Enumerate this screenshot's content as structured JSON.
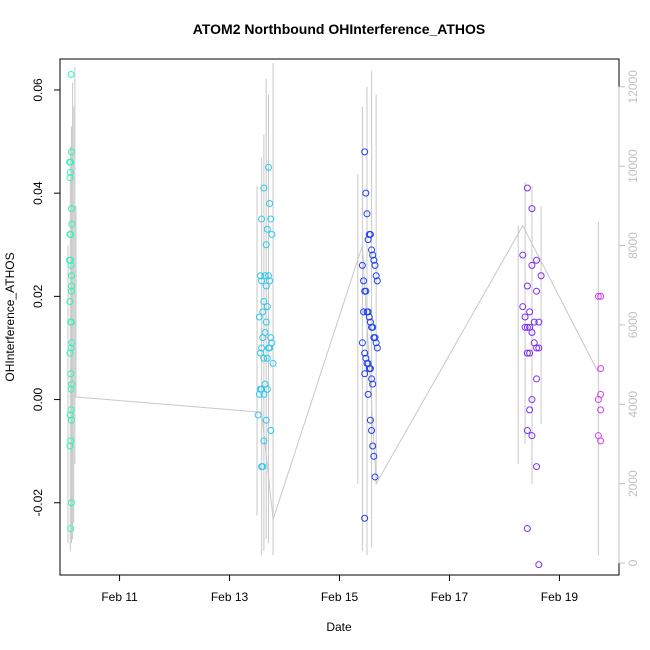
{
  "chart_data": {
    "type": "scatter",
    "title": "ATOM2 Northbound OHInterference_ATHOS",
    "xlabel": "Date",
    "ylabel": "OHInterference_ATHOS",
    "x_ticks": [
      "Feb 11",
      "Feb 13",
      "Feb 15",
      "Feb 17",
      "Feb 19"
    ],
    "y_ticks": [
      "-0.02",
      "0.00",
      "0.02",
      "0.04",
      "0.06"
    ],
    "y2_ticks": [
      "0",
      "2000",
      "4000",
      "6000",
      "8000",
      "10000",
      "12000"
    ],
    "xlim": [
      "2016-02-09 22:00",
      "2016-02-20 02:00"
    ],
    "ylim": [
      -0.034,
      0.066
    ],
    "y2lim": [
      -300,
      12700
    ],
    "grid": false,
    "colors": {
      "secondary_line": "#c8c8c8",
      "secondary_axis": "#c0c0c0",
      "point_palette": [
        "#2ff5b9",
        "#2fc8f0",
        "#1f3ff0",
        "#7a2ff0",
        "#d63ff0"
      ]
    },
    "series": [
      {
        "group": 1,
        "color": "#2ff5b9",
        "points": [
          [
            "2016-02-10 02:10",
            0.046
          ],
          [
            "2016-02-10 02:20",
            0.043
          ],
          [
            "2016-02-10 02:30",
            0.044
          ],
          [
            "2016-02-10 02:40",
            0.046
          ],
          [
            "2016-02-10 02:20",
            0.032
          ],
          [
            "2016-02-10 02:30",
            0.027
          ],
          [
            "2016-02-10 02:10",
            0.027
          ],
          [
            "2016-02-10 02:40",
            0.032
          ],
          [
            "2016-02-10 02:50",
            0.026
          ],
          [
            "2016-02-10 02:20",
            0.019
          ],
          [
            "2016-02-10 03:00",
            0.022
          ],
          [
            "2016-02-10 03:00",
            0.021
          ],
          [
            "2016-02-10 02:40",
            0.015
          ],
          [
            "2016-02-10 02:20",
            0.009
          ],
          [
            "2016-02-10 02:50",
            0.01
          ],
          [
            "2016-02-10 03:10",
            0.011
          ],
          [
            "2016-02-10 03:00",
            0.015
          ],
          [
            "2016-02-10 02:40",
            0.005
          ],
          [
            "2016-02-10 02:30",
            -0.003
          ],
          [
            "2016-02-10 02:20",
            -0.009
          ],
          [
            "2016-02-10 02:50",
            -0.002
          ],
          [
            "2016-02-10 03:00",
            -0.004
          ],
          [
            "2016-02-10 02:40",
            -0.008
          ],
          [
            "2016-02-10 03:10",
            0.003
          ],
          [
            "2016-02-10 03:00",
            0.048
          ],
          [
            "2016-02-10 03:00",
            0.037
          ],
          [
            "2016-02-10 03:10",
            0.034
          ],
          [
            "2016-02-10 03:00",
            0.024
          ],
          [
            "2016-02-10 02:50",
            0.063
          ],
          [
            "2016-02-10 03:00",
            -0.02
          ],
          [
            "2016-02-10 02:40",
            -0.025
          ],
          [
            "2016-02-10 02:50",
            0.002
          ]
        ]
      },
      {
        "group": 2,
        "color": "#2fc8f0",
        "points": [
          [
            "2016-02-13 13:00",
            0.016
          ],
          [
            "2016-02-13 13:30",
            0.024
          ],
          [
            "2016-02-13 14:00",
            0.023
          ],
          [
            "2016-02-13 14:30",
            0.017
          ],
          [
            "2016-02-13 15:00",
            0.019
          ],
          [
            "2016-02-13 15:30",
            0.024
          ],
          [
            "2016-02-13 16:00",
            0.022
          ],
          [
            "2016-02-13 16:30",
            0.018
          ],
          [
            "2016-02-13 17:00",
            0.024
          ],
          [
            "2016-02-13 17:30",
            0.023
          ],
          [
            "2016-02-13 15:00",
            0.041
          ],
          [
            "2016-02-13 14:00",
            0.035
          ],
          [
            "2016-02-13 17:00",
            0.045
          ],
          [
            "2016-02-13 17:30",
            0.038
          ],
          [
            "2016-02-13 18:00",
            0.035
          ],
          [
            "2016-02-13 18:30",
            0.032
          ],
          [
            "2016-02-13 16:30",
            0.033
          ],
          [
            "2016-02-13 16:00",
            0.03
          ],
          [
            "2016-02-13 13:30",
            0.009
          ],
          [
            "2016-02-13 14:00",
            0.01
          ],
          [
            "2016-02-13 14:30",
            0.012
          ],
          [
            "2016-02-13 15:00",
            0.008
          ],
          [
            "2016-02-13 15:30",
            0.013
          ],
          [
            "2016-02-13 16:00",
            0.015
          ],
          [
            "2016-02-13 16:30",
            0.008
          ],
          [
            "2016-02-13 17:00",
            0.01
          ],
          [
            "2016-02-13 17:30",
            0.01
          ],
          [
            "2016-02-13 18:00",
            0.012
          ],
          [
            "2016-02-13 18:30",
            0.011
          ],
          [
            "2016-02-13 19:00",
            0.007
          ],
          [
            "2016-02-13 13:00",
            0.001
          ],
          [
            "2016-02-13 13:30",
            0.002
          ],
          [
            "2016-02-13 14:00",
            0.002
          ],
          [
            "2016-02-13 15:00",
            0.001
          ],
          [
            "2016-02-13 15:30",
            0.003
          ],
          [
            "2016-02-13 16:30",
            0.002
          ],
          [
            "2016-02-13 12:30",
            -0.003
          ],
          [
            "2016-02-13 16:00",
            -0.004
          ],
          [
            "2016-02-13 18:00",
            -0.006
          ],
          [
            "2016-02-13 15:00",
            -0.008
          ],
          [
            "2016-02-13 14:00",
            -0.013
          ],
          [
            "2016-02-13 14:30",
            -0.013
          ]
        ]
      },
      {
        "group": 3,
        "color": "#1f3ff0",
        "points": [
          [
            "2016-02-15 11:00",
            0.048
          ],
          [
            "2016-02-15 11:30",
            0.04
          ],
          [
            "2016-02-15 12:00",
            0.036
          ],
          [
            "2016-02-15 12:30",
            0.031
          ],
          [
            "2016-02-15 13:00",
            0.032
          ],
          [
            "2016-02-15 13:30",
            0.032
          ],
          [
            "2016-02-15 14:00",
            0.029
          ],
          [
            "2016-02-15 14:30",
            0.028
          ],
          [
            "2016-02-15 15:00",
            0.027
          ],
          [
            "2016-02-15 15:30",
            0.026
          ],
          [
            "2016-02-15 16:00",
            0.024
          ],
          [
            "2016-02-15 16:30",
            0.023
          ],
          [
            "2016-02-15 10:00",
            0.026
          ],
          [
            "2016-02-15 10:30",
            0.023
          ],
          [
            "2016-02-15 11:00",
            0.021
          ],
          [
            "2016-02-15 11:30",
            0.021
          ],
          [
            "2016-02-15 12:00",
            0.017
          ],
          [
            "2016-02-15 12:30",
            0.017
          ],
          [
            "2016-02-15 13:00",
            0.016
          ],
          [
            "2016-02-15 13:30",
            0.015
          ],
          [
            "2016-02-15 14:00",
            0.014
          ],
          [
            "2016-02-15 14:30",
            0.014
          ],
          [
            "2016-02-15 15:00",
            0.012
          ],
          [
            "2016-02-15 15:30",
            0.012
          ],
          [
            "2016-02-15 16:00",
            0.011
          ],
          [
            "2016-02-15 16:30",
            0.01
          ],
          [
            "2016-02-15 10:30",
            0.017
          ],
          [
            "2016-02-15 11:00",
            0.009
          ],
          [
            "2016-02-15 11:30",
            0.008
          ],
          [
            "2016-02-15 12:00",
            0.007
          ],
          [
            "2016-02-15 12:30",
            0.007
          ],
          [
            "2016-02-15 13:00",
            0.006
          ],
          [
            "2016-02-15 13:30",
            0.006
          ],
          [
            "2016-02-15 14:00",
            0.004
          ],
          [
            "2016-02-15 14:30",
            0.003
          ],
          [
            "2016-02-15 10:00",
            0.011
          ],
          [
            "2016-02-15 11:00",
            0.005
          ],
          [
            "2016-02-15 12:30",
            0.001
          ],
          [
            "2016-02-15 13:30",
            -0.004
          ],
          [
            "2016-02-15 14:00",
            -0.006
          ],
          [
            "2016-02-15 14:30",
            -0.009
          ],
          [
            "2016-02-15 15:00",
            -0.011
          ],
          [
            "2016-02-15 15:30",
            -0.015
          ],
          [
            "2016-02-15 11:00",
            -0.023
          ]
        ]
      },
      {
        "group": 4,
        "color": "#7a2ff0",
        "points": [
          [
            "2016-02-18 10:00",
            0.041
          ],
          [
            "2016-02-18 12:00",
            0.037
          ],
          [
            "2016-02-18 08:00",
            0.028
          ],
          [
            "2016-02-18 14:00",
            0.027
          ],
          [
            "2016-02-18 16:00",
            0.024
          ],
          [
            "2016-02-18 12:00",
            0.026
          ],
          [
            "2016-02-18 10:00",
            0.022
          ],
          [
            "2016-02-18 14:00",
            0.021
          ],
          [
            "2016-02-18 08:00",
            0.018
          ],
          [
            "2016-02-18 09:00",
            0.016
          ],
          [
            "2016-02-18 11:00",
            0.017
          ],
          [
            "2016-02-18 13:00",
            0.015
          ],
          [
            "2016-02-18 15:00",
            0.015
          ],
          [
            "2016-02-18 09:00",
            0.014
          ],
          [
            "2016-02-18 10:00",
            0.014
          ],
          [
            "2016-02-18 11:00",
            0.014
          ],
          [
            "2016-02-18 12:00",
            0.013
          ],
          [
            "2016-02-18 13:00",
            0.011
          ],
          [
            "2016-02-18 14:00",
            0.01
          ],
          [
            "2016-02-18 15:00",
            0.01
          ],
          [
            "2016-02-18 10:00",
            0.009
          ],
          [
            "2016-02-18 11:00",
            0.009
          ],
          [
            "2016-02-18 14:00",
            0.004
          ],
          [
            "2016-02-18 12:00",
            0.0
          ],
          [
            "2016-02-18 11:00",
            -0.002
          ],
          [
            "2016-02-18 10:00",
            -0.006
          ],
          [
            "2016-02-18 12:00",
            -0.007
          ],
          [
            "2016-02-18 14:00",
            -0.013
          ],
          [
            "2016-02-18 10:00",
            -0.025
          ],
          [
            "2016-02-18 15:00",
            -0.032
          ]
        ]
      },
      {
        "group": 5,
        "color": "#d63ff0",
        "points": [
          [
            "2016-02-19 17:00",
            0.02
          ],
          [
            "2016-02-19 18:00",
            0.02
          ],
          [
            "2016-02-19 18:00",
            0.006
          ],
          [
            "2016-02-19 18:00",
            0.001
          ],
          [
            "2016-02-19 17:00",
            0.0
          ],
          [
            "2016-02-19 18:00",
            -0.002
          ],
          [
            "2016-02-19 17:00",
            -0.007
          ],
          [
            "2016-02-19 18:00",
            -0.008
          ]
        ]
      }
    ],
    "secondary_series": {
      "axis": "right",
      "color": "#c8c8c8",
      "points": [
        [
          "2016-02-10 02:00",
          4200
        ],
        [
          "2016-02-13 14:00",
          3800
        ],
        [
          "2016-02-13 19:00",
          1100
        ],
        [
          "2016-02-15 10:00",
          8000
        ],
        [
          "2016-02-15 16:00",
          2000
        ],
        [
          "2016-02-18 08:00",
          8500
        ],
        [
          "2016-02-18 16:00",
          7600
        ],
        [
          "2016-02-19 17:00",
          4800
        ]
      ],
      "spikes": [
        {
          "t": "2016-02-10 01:30",
          "min": 500,
          "max": 8000
        },
        {
          "t": "2016-02-10 02:30",
          "min": 300,
          "max": 10500
        },
        {
          "t": "2016-02-10 03:00",
          "min": 500,
          "max": 11000
        },
        {
          "t": "2016-02-10 03:30",
          "min": 600,
          "max": 12100
        },
        {
          "t": "2016-02-10 04:00",
          "min": 1000,
          "max": 11500
        },
        {
          "t": "2016-02-10 04:30",
          "min": 2500,
          "max": 12500
        },
        {
          "t": "2016-02-10 05:00",
          "min": 4200,
          "max": 9000
        },
        {
          "t": "2016-02-13 12:00",
          "min": 1200,
          "max": 9500
        },
        {
          "t": "2016-02-13 14:00",
          "min": 200,
          "max": 10200
        },
        {
          "t": "2016-02-13 15:00",
          "min": 300,
          "max": 10800
        },
        {
          "t": "2016-02-13 16:00",
          "min": 600,
          "max": 12200
        },
        {
          "t": "2016-02-13 17:00",
          "min": 500,
          "max": 11800
        },
        {
          "t": "2016-02-13 19:00",
          "min": 200,
          "max": 12600
        },
        {
          "t": "2016-02-15 08:00",
          "min": 2000,
          "max": 9800
        },
        {
          "t": "2016-02-15 10:00",
          "min": 300,
          "max": 11500
        },
        {
          "t": "2016-02-15 12:00",
          "min": 200,
          "max": 12000
        },
        {
          "t": "2016-02-15 14:00",
          "min": 400,
          "max": 12400
        },
        {
          "t": "2016-02-15 16:00",
          "min": 2000,
          "max": 11800
        },
        {
          "t": "2016-02-18 06:00",
          "min": 2500,
          "max": 8500
        },
        {
          "t": "2016-02-18 09:00",
          "min": 3000,
          "max": 9600
        },
        {
          "t": "2016-02-18 12:00",
          "min": 2000,
          "max": 9500
        },
        {
          "t": "2016-02-18 16:00",
          "min": 3500,
          "max": 9000
        },
        {
          "t": "2016-02-19 17:00",
          "min": 200,
          "max": 8600
        }
      ]
    }
  }
}
